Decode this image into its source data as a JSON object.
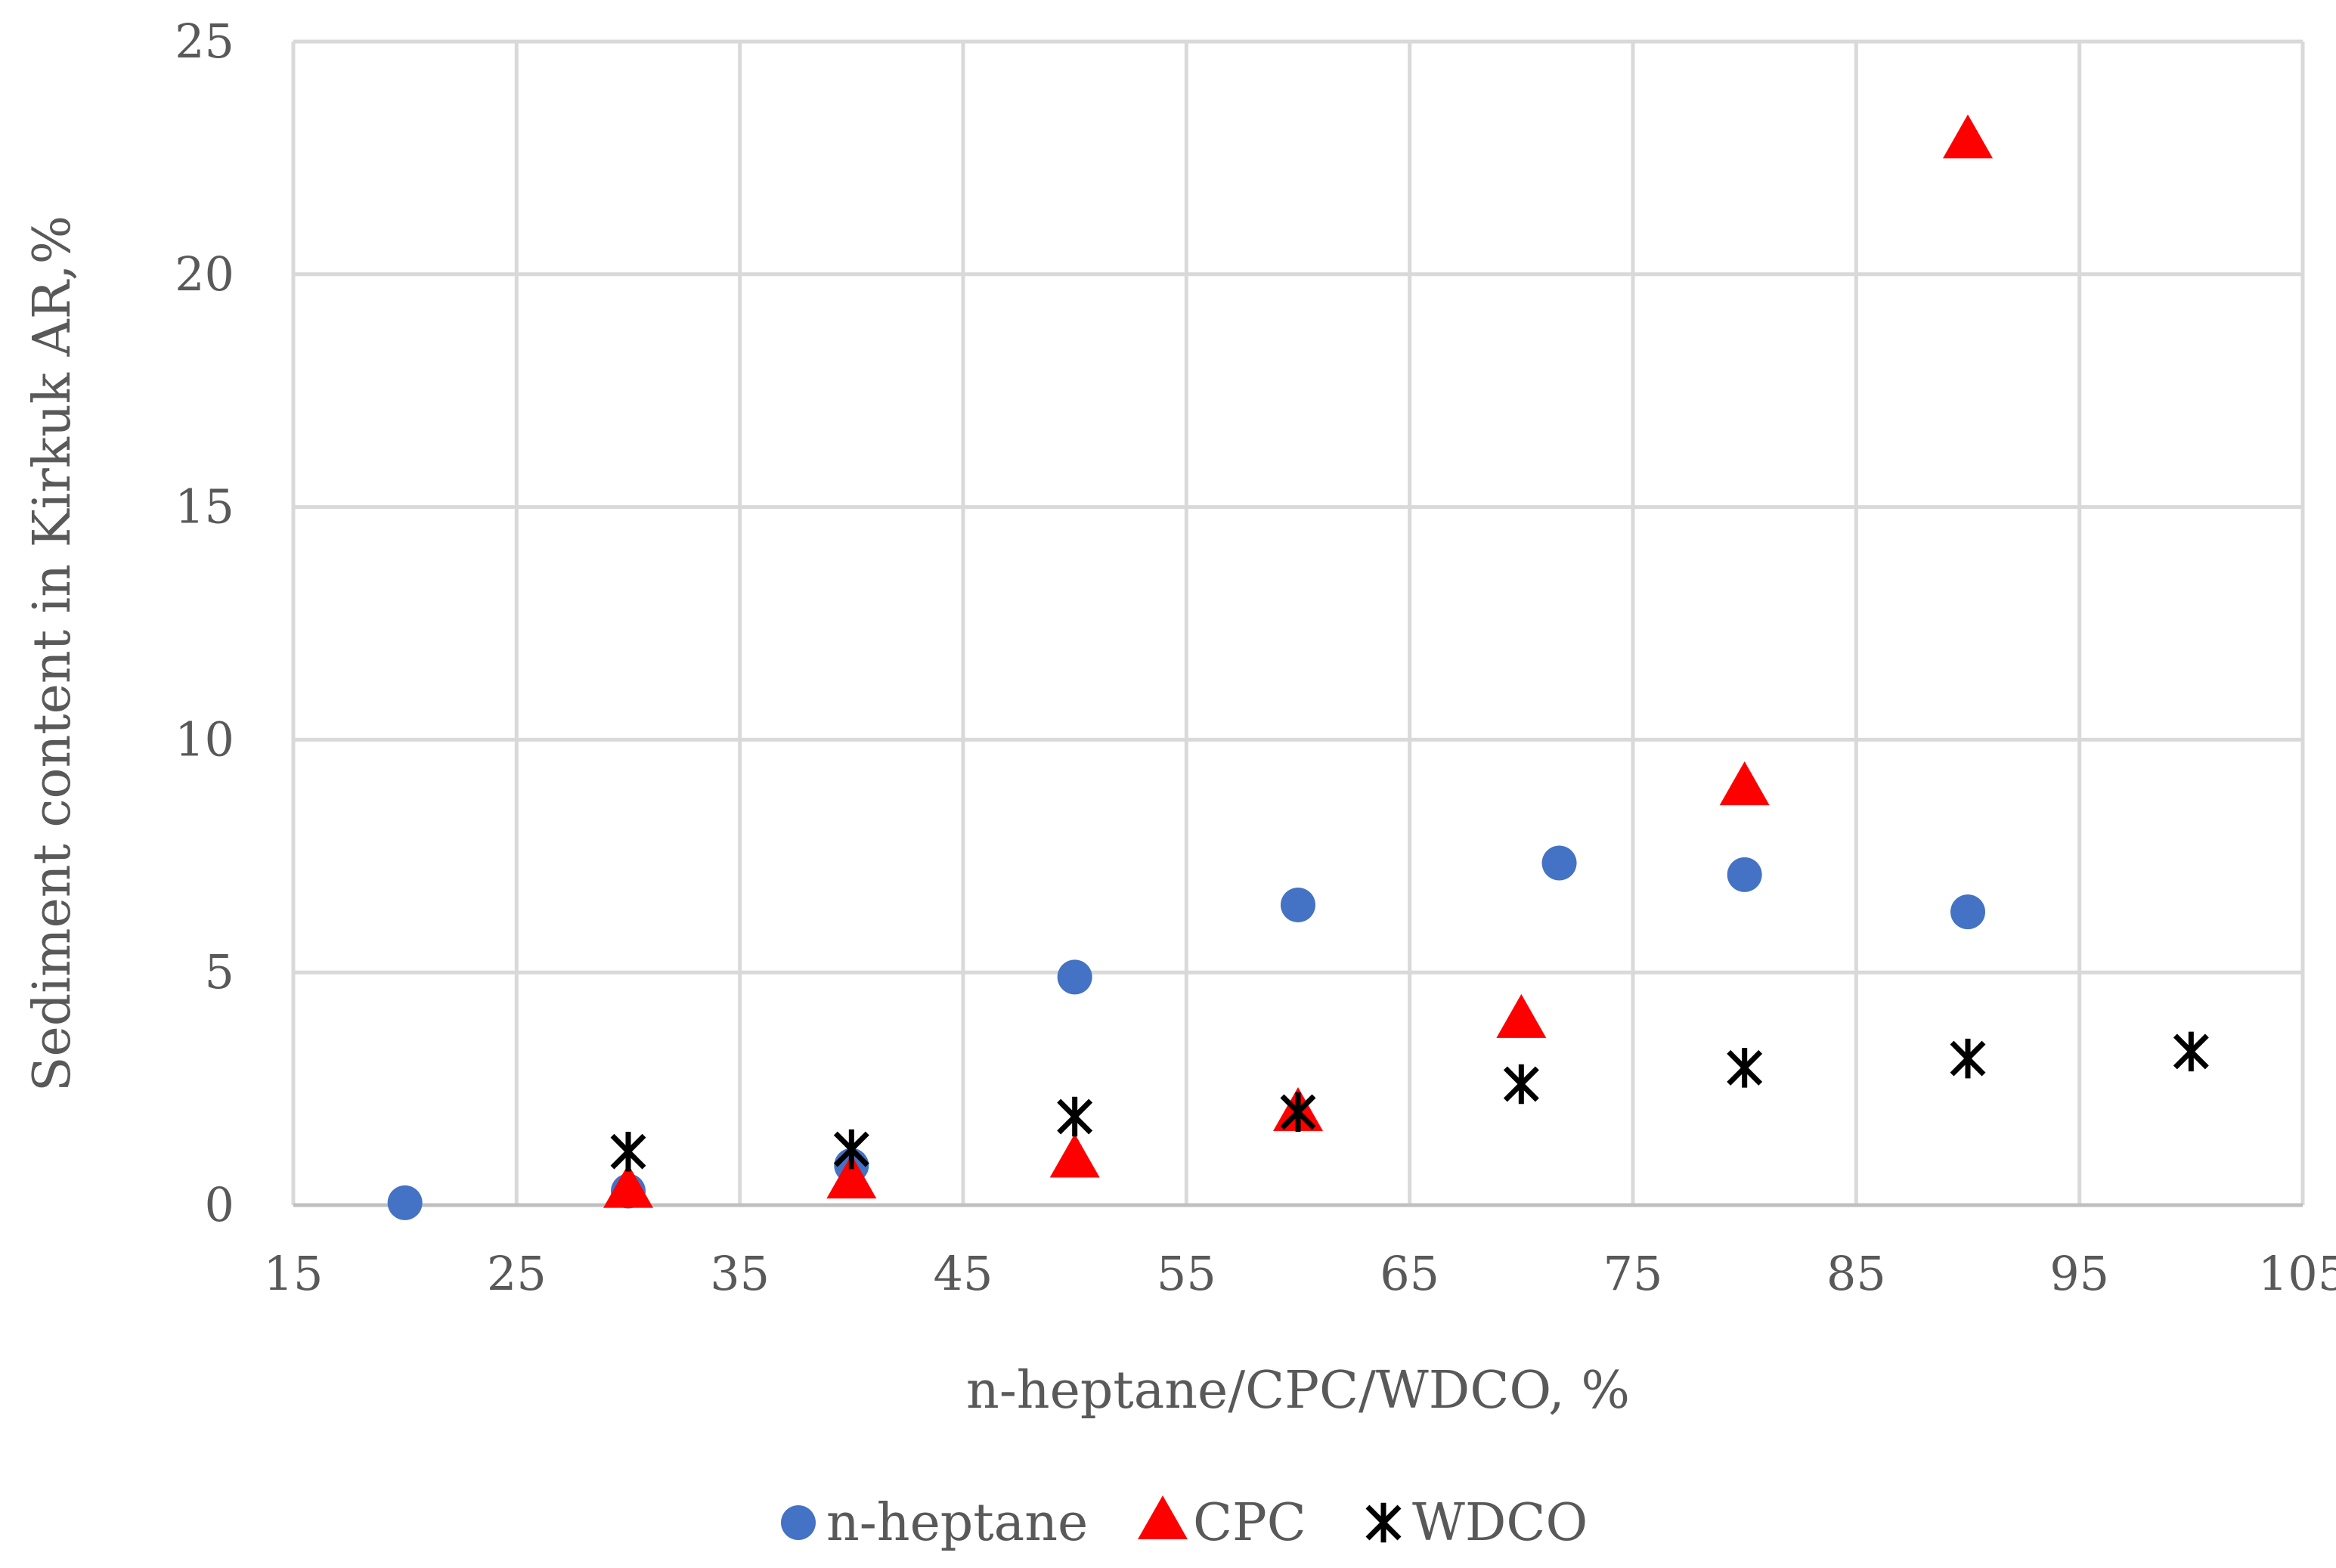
{
  "chart_data": {
    "type": "scatter",
    "title": "",
    "xlabel": "n-heptane/CPC/WDCO, %",
    "ylabel": "Sediment content in Kirkuk AR,%",
    "xlim": [
      15,
      105
    ],
    "ylim": [
      0,
      25
    ],
    "xticks": [
      15,
      25,
      35,
      45,
      55,
      65,
      75,
      85,
      95,
      105
    ],
    "yticks": [
      0,
      5,
      10,
      15,
      20,
      25
    ],
    "grid": true,
    "legend_position": "bottom",
    "series": [
      {
        "name": "n-heptane",
        "marker": "circle",
        "color": "#4472C4",
        "points": [
          {
            "x": 20,
            "y": 0.05
          },
          {
            "x": 30,
            "y": 0.3
          },
          {
            "x": 40,
            "y": 0.85
          },
          {
            "x": 50,
            "y": 4.9
          },
          {
            "x": 60,
            "y": 6.45
          },
          {
            "x": 71.7,
            "y": 7.35
          },
          {
            "x": 80,
            "y": 7.1
          },
          {
            "x": 90,
            "y": 6.3
          }
        ]
      },
      {
        "name": "CPC",
        "marker": "triangle",
        "color": "#FF0000",
        "points": [
          {
            "x": 30,
            "y": 0.3
          },
          {
            "x": 40,
            "y": 0.5
          },
          {
            "x": 50,
            "y": 0.95
          },
          {
            "x": 60,
            "y": 1.95
          },
          {
            "x": 70,
            "y": 3.95
          },
          {
            "x": 80,
            "y": 8.95
          },
          {
            "x": 90,
            "y": 22.85
          }
        ]
      },
      {
        "name": "WDCO",
        "marker": "asterisk",
        "color": "#000000",
        "points": [
          {
            "x": 30,
            "y": 1.15
          },
          {
            "x": 40,
            "y": 1.2
          },
          {
            "x": 50,
            "y": 1.9
          },
          {
            "x": 60,
            "y": 2.0
          },
          {
            "x": 70,
            "y": 2.6
          },
          {
            "x": 80,
            "y": 2.95
          },
          {
            "x": 90,
            "y": 3.15
          },
          {
            "x": 100,
            "y": 3.3
          }
        ]
      }
    ]
  }
}
